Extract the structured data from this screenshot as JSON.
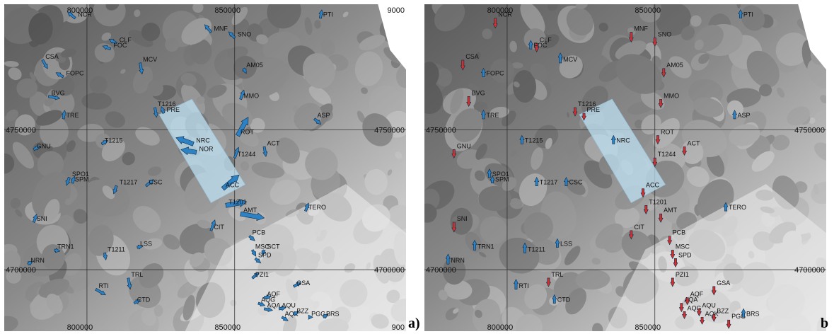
{
  "axes": {
    "x_ticks": [
      "800000",
      "850000",
      "9000"
    ],
    "y_ticks": [
      "4750000",
      "4700000"
    ]
  },
  "panels": [
    {
      "id": "a",
      "label": "a)",
      "x_ticks_top": [
        "800000",
        "850000",
        "9000"
      ],
      "x_ticks_bottom": [
        "800000",
        "850000",
        "900"
      ],
      "y_ticks_left": [
        "4750000",
        "4700000"
      ],
      "y_ticks_right": [
        "4750000",
        "4700000"
      ],
      "arrow_color": "#2d82c6",
      "stations": [
        {
          "name": "NCR",
          "x": 796000,
          "y": 4790000,
          "dir": -50,
          "len": 14
        },
        {
          "name": "MNF",
          "x": 842000,
          "y": 4785000,
          "dir": -40,
          "len": 14
        },
        {
          "name": "SNO",
          "x": 850000,
          "y": 4783000,
          "dir": -45,
          "len": 12
        },
        {
          "name": "PTI",
          "x": 879000,
          "y": 4790000,
          "dir": 10,
          "len": 12
        },
        {
          "name": "CLF",
          "x": 810000,
          "y": 4781000,
          "dir": -60,
          "len": 12
        },
        {
          "name": "FOC",
          "x": 808000,
          "y": 4779000,
          "dir": -70,
          "len": 12
        },
        {
          "name": "CSA",
          "x": 785000,
          "y": 4775000,
          "dir": 150,
          "len": 14
        },
        {
          "name": "MCV",
          "x": 818000,
          "y": 4774000,
          "dir": 170,
          "len": 16
        },
        {
          "name": "AM05",
          "x": 853000,
          "y": 4772000,
          "dir": 150,
          "len": 8
        },
        {
          "name": "FOPC",
          "x": 792000,
          "y": 4769000,
          "dir": -60,
          "len": 12
        },
        {
          "name": "BVG",
          "x": 787000,
          "y": 4762000,
          "dir": 100,
          "len": 16
        },
        {
          "name": "MMO",
          "x": 852000,
          "y": 4761000,
          "dir": 20,
          "len": 14
        },
        {
          "name": "T1216",
          "x": 823000,
          "y": 4758000,
          "dir": 170,
          "len": 14
        },
        {
          "name": "PRE",
          "x": 826000,
          "y": 4756000,
          "dir": -20,
          "len": 10
        },
        {
          "name": "TRE",
          "x": 792000,
          "y": 4754000,
          "dir": 10,
          "len": 12
        },
        {
          "name": "ASP",
          "x": 877000,
          "y": 4754000,
          "dir": 130,
          "len": 12
        },
        {
          "name": "ROT",
          "x": 851000,
          "y": 4748000,
          "dir": 30,
          "len": 30
        },
        {
          "name": "T1215",
          "x": 805000,
          "y": 4745000,
          "dir": 60,
          "len": 10
        },
        {
          "name": "NRC",
          "x": 836000,
          "y": 4745000,
          "dir": -70,
          "len": 26
        },
        {
          "name": "NOR",
          "x": 837000,
          "y": 4742000,
          "dir": -80,
          "len": 22
        },
        {
          "name": "GNU",
          "x": 782000,
          "y": 4743000,
          "dir": 60,
          "len": 10
        },
        {
          "name": "ACT",
          "x": 860000,
          "y": 4744000,
          "dir": 170,
          "len": 14
        },
        {
          "name": "T1244",
          "x": 850000,
          "y": 4740000,
          "dir": 20,
          "len": 16
        },
        {
          "name": "SPO1",
          "x": 794000,
          "y": 4733000,
          "dir": 200,
          "len": 12
        },
        {
          "name": "SPM",
          "x": 795000,
          "y": 4731000,
          "dir": 20,
          "len": 10
        },
        {
          "name": "T1217",
          "x": 810000,
          "y": 4730000,
          "dir": 200,
          "len": 12
        },
        {
          "name": "CSC",
          "x": 820000,
          "y": 4730000,
          "dir": 50,
          "len": 14
        },
        {
          "name": "ACC",
          "x": 846000,
          "y": 4729000,
          "dir": 50,
          "len": 30
        },
        {
          "name": "T1201",
          "x": 847000,
          "y": 4723000,
          "dir": 80,
          "len": 30
        },
        {
          "name": "AMT",
          "x": 852000,
          "y": 4720000,
          "dir": 100,
          "len": 34
        },
        {
          "name": "TERO",
          "x": 874000,
          "y": 4721000,
          "dir": 20,
          "len": 12
        },
        {
          "name": "SNI",
          "x": 782000,
          "y": 4717000,
          "dir": 20,
          "len": 12
        },
        {
          "name": "CIT",
          "x": 842000,
          "y": 4714000,
          "dir": 20,
          "len": 16
        },
        {
          "name": "PCB",
          "x": 855000,
          "y": 4712000,
          "dir": 130,
          "len": 10
        },
        {
          "name": "LSS",
          "x": 817000,
          "y": 4708000,
          "dir": 80,
          "len": 8
        },
        {
          "name": "MSC",
          "x": 856000,
          "y": 4707000,
          "dir": 150,
          "len": 10
        },
        {
          "name": "SCT",
          "x": 860000,
          "y": 4707000,
          "dir": 200,
          "len": 8
        },
        {
          "name": "TRN1",
          "x": 789000,
          "y": 4707000,
          "dir": 100,
          "len": 8
        },
        {
          "name": "T1211",
          "x": 806000,
          "y": 4706000,
          "dir": 170,
          "len": 10
        },
        {
          "name": "SPD",
          "x": 857000,
          "y": 4704000,
          "dir": 130,
          "len": 10
        },
        {
          "name": "NRN",
          "x": 780000,
          "y": 4702000,
          "dir": 60,
          "len": 8
        },
        {
          "name": "TRL",
          "x": 814000,
          "y": 4697000,
          "dir": 170,
          "len": 16
        },
        {
          "name": "PZI1",
          "x": 856000,
          "y": 4697000,
          "dir": 50,
          "len": 12
        },
        {
          "name": "RTI",
          "x": 803000,
          "y": 4693000,
          "dir": 120,
          "len": 16
        },
        {
          "name": "GSA",
          "x": 870000,
          "y": 4694000,
          "dir": 60,
          "len": 12
        },
        {
          "name": "CTD",
          "x": 816000,
          "y": 4688000,
          "dir": 60,
          "len": 10
        },
        {
          "name": "AQG",
          "x": 858000,
          "y": 4688000,
          "dir": 110,
          "len": 10
        },
        {
          "name": "AQF",
          "x": 860000,
          "y": 4690000,
          "dir": 80,
          "len": 10
        },
        {
          "name": "AQA",
          "x": 860000,
          "y": 4686000,
          "dir": 100,
          "len": 12
        },
        {
          "name": "AQU",
          "x": 865000,
          "y": 4686000,
          "dir": 80,
          "len": 10
        },
        {
          "name": "AQK",
          "x": 866000,
          "y": 4683000,
          "dir": 120,
          "len": 10
        },
        {
          "name": "BZZ",
          "x": 870000,
          "y": 4684000,
          "dir": 60,
          "len": 8
        },
        {
          "name": "PGG",
          "x": 875000,
          "y": 4683000,
          "dir": 90,
          "len": 6
        },
        {
          "name": "BRS",
          "x": 880000,
          "y": 4683000,
          "dir": 60,
          "len": 8
        }
      ]
    },
    {
      "id": "b",
      "label": "b",
      "x_ticks_top": [
        "800000",
        "850000"
      ],
      "x_ticks_bottom": [
        "800000",
        "850000"
      ],
      "y_ticks_left": [
        "4750000",
        "4700000"
      ],
      "y_ticks_right": [
        "4750000",
        "4700000"
      ],
      "arrow_color_up": "#2d82c6",
      "arrow_color_down": "#d32f2f",
      "stations": [
        {
          "name": "NCR",
          "x": 796000,
          "y": 4790000,
          "dir": 180,
          "len": 14,
          "down": true
        },
        {
          "name": "MNF",
          "x": 842000,
          "y": 4785000,
          "dir": 180,
          "len": 14,
          "down": true
        },
        {
          "name": "SNO",
          "x": 850000,
          "y": 4783000,
          "dir": 180,
          "len": 12,
          "down": true
        },
        {
          "name": "PTI",
          "x": 879000,
          "y": 4790000,
          "dir": 0,
          "len": 12,
          "down": false
        },
        {
          "name": "CLF",
          "x": 810000,
          "y": 4781000,
          "dir": 180,
          "len": 12,
          "down": true
        },
        {
          "name": "FOC",
          "x": 808000,
          "y": 4779000,
          "dir": 0,
          "len": 12,
          "down": false
        },
        {
          "name": "CSA",
          "x": 785000,
          "y": 4775000,
          "dir": 180,
          "len": 14,
          "down": true
        },
        {
          "name": "MCV",
          "x": 818000,
          "y": 4774000,
          "dir": 0,
          "len": 14,
          "down": false
        },
        {
          "name": "AM05",
          "x": 853000,
          "y": 4772000,
          "dir": 180,
          "len": 12,
          "down": true
        },
        {
          "name": "FOPC",
          "x": 792000,
          "y": 4769000,
          "dir": 0,
          "len": 12,
          "down": false
        },
        {
          "name": "BVG",
          "x": 787000,
          "y": 4762000,
          "dir": 180,
          "len": 14,
          "down": true
        },
        {
          "name": "MMO",
          "x": 852000,
          "y": 4761000,
          "dir": 180,
          "len": 12,
          "down": true
        },
        {
          "name": "T1216",
          "x": 823000,
          "y": 4758000,
          "dir": 180,
          "len": 12,
          "down": true
        },
        {
          "name": "PRE",
          "x": 826000,
          "y": 4756000,
          "dir": 180,
          "len": 10,
          "down": true
        },
        {
          "name": "TRE",
          "x": 792000,
          "y": 4754000,
          "dir": 0,
          "len": 12,
          "down": false
        },
        {
          "name": "ASP",
          "x": 877000,
          "y": 4754000,
          "dir": 0,
          "len": 12,
          "down": false
        },
        {
          "name": "ROT",
          "x": 851000,
          "y": 4748000,
          "dir": 180,
          "len": 12,
          "down": true
        },
        {
          "name": "T1215",
          "x": 805000,
          "y": 4745000,
          "dir": 0,
          "len": 12,
          "down": false
        },
        {
          "name": "NRC",
          "x": 836000,
          "y": 4745000,
          "dir": 0,
          "len": 12,
          "down": false
        },
        {
          "name": "GNU",
          "x": 782000,
          "y": 4743000,
          "dir": 180,
          "len": 12,
          "down": true
        },
        {
          "name": "ACT",
          "x": 860000,
          "y": 4744000,
          "dir": 180,
          "len": 12,
          "down": true
        },
        {
          "name": "T1244",
          "x": 850000,
          "y": 4740000,
          "dir": 180,
          "len": 12,
          "down": true
        },
        {
          "name": "SPO1",
          "x": 794000,
          "y": 4733000,
          "dir": 0,
          "len": 12,
          "down": false
        },
        {
          "name": "SPM",
          "x": 795000,
          "y": 4731000,
          "dir": 0,
          "len": 10,
          "down": false
        },
        {
          "name": "T1217",
          "x": 810000,
          "y": 4730000,
          "dir": 0,
          "len": 12,
          "down": false
        },
        {
          "name": "CSC",
          "x": 820000,
          "y": 4730000,
          "dir": 0,
          "len": 12,
          "down": false
        },
        {
          "name": "ACC",
          "x": 846000,
          "y": 4729000,
          "dir": 180,
          "len": 12,
          "down": true
        },
        {
          "name": "T1201",
          "x": 847000,
          "y": 4723000,
          "dir": 180,
          "len": 12,
          "down": true
        },
        {
          "name": "AMT",
          "x": 852000,
          "y": 4720000,
          "dir": 180,
          "len": 12,
          "down": true
        },
        {
          "name": "TERO",
          "x": 874000,
          "y": 4721000,
          "dir": 0,
          "len": 12,
          "down": false
        },
        {
          "name": "SNI",
          "x": 782000,
          "y": 4717000,
          "dir": 180,
          "len": 14,
          "down": true
        },
        {
          "name": "CIT",
          "x": 842000,
          "y": 4714000,
          "dir": 180,
          "len": 12,
          "down": true
        },
        {
          "name": "PCB",
          "x": 855000,
          "y": 4712000,
          "dir": 180,
          "len": 12,
          "down": true
        },
        {
          "name": "LSS",
          "x": 817000,
          "y": 4708000,
          "dir": 0,
          "len": 12,
          "down": false
        },
        {
          "name": "MSC",
          "x": 856000,
          "y": 4707000,
          "dir": 180,
          "len": 12,
          "down": true
        },
        {
          "name": "TRN1",
          "x": 789000,
          "y": 4707000,
          "dir": 0,
          "len": 14,
          "down": false
        },
        {
          "name": "T1211",
          "x": 806000,
          "y": 4706000,
          "dir": 0,
          "len": 14,
          "down": false
        },
        {
          "name": "SPD",
          "x": 857000,
          "y": 4704000,
          "dir": 180,
          "len": 12,
          "down": true
        },
        {
          "name": "NRN",
          "x": 780000,
          "y": 4702000,
          "dir": 0,
          "len": 14,
          "down": false
        },
        {
          "name": "TRL",
          "x": 814000,
          "y": 4697000,
          "dir": 180,
          "len": 12,
          "down": true
        },
        {
          "name": "PZI1",
          "x": 856000,
          "y": 4697000,
          "dir": 180,
          "len": 12,
          "down": true
        },
        {
          "name": "RTI",
          "x": 803000,
          "y": 4693000,
          "dir": 0,
          "len": 14,
          "down": false
        },
        {
          "name": "GSA",
          "x": 870000,
          "y": 4694000,
          "dir": 180,
          "len": 12,
          "down": true
        },
        {
          "name": "CTD",
          "x": 816000,
          "y": 4688000,
          "dir": 0,
          "len": 12,
          "down": false
        },
        {
          "name": "AQA",
          "x": 859000,
          "y": 4688000,
          "dir": 180,
          "len": 12,
          "down": true
        },
        {
          "name": "AQF",
          "x": 861000,
          "y": 4690000,
          "dir": 180,
          "len": 10,
          "down": true
        },
        {
          "name": "AQG",
          "x": 860000,
          "y": 4685000,
          "dir": 180,
          "len": 10,
          "down": true
        },
        {
          "name": "AQU",
          "x": 865000,
          "y": 4686000,
          "dir": 180,
          "len": 10,
          "down": true
        },
        {
          "name": "AQK",
          "x": 866000,
          "y": 4683000,
          "dir": 180,
          "len": 10,
          "down": true
        },
        {
          "name": "BZZ",
          "x": 870000,
          "y": 4684000,
          "dir": 180,
          "len": 10,
          "down": true
        },
        {
          "name": "PGG",
          "x": 875000,
          "y": 4682000,
          "dir": 180,
          "len": 12,
          "down": true
        },
        {
          "name": "BRS",
          "x": 880000,
          "y": 4683000,
          "dir": 0,
          "len": 12,
          "down": false
        }
      ]
    }
  ]
}
